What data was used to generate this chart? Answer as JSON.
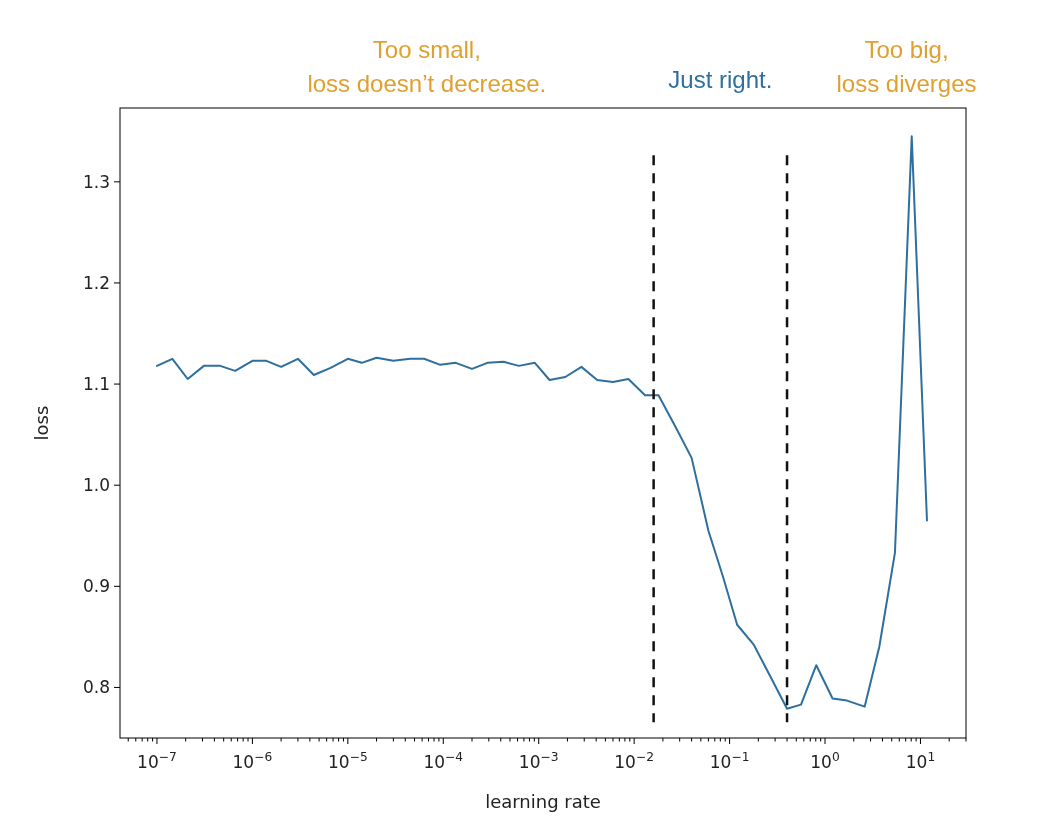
{
  "chart_data": {
    "type": "line",
    "xlabel": "learning rate",
    "ylabel": "loss",
    "log": "x",
    "grid": false,
    "marker": "none",
    "line_style": "solid",
    "annotations": [
      "Too small,\nloss doesn’t decrease.",
      "Just right.",
      "Too big,\nloss diverges"
    ],
    "xlim": [
      4.1e-08,
      30
    ],
    "ylim": [
      0.75,
      1.373
    ],
    "yticks": [
      {
        "value": 0.8,
        "label": "0.8"
      },
      {
        "value": 0.9,
        "label": "0.9"
      },
      {
        "value": 1.0,
        "label": "1.0"
      },
      {
        "value": 1.1,
        "label": "1.1"
      },
      {
        "value": 1.2,
        "label": "1.2"
      },
      {
        "value": 1.3,
        "label": "1.3"
      }
    ],
    "xticks": [
      {
        "value": 1e-07,
        "label": "10$^{−7}$"
      },
      {
        "value": 1e-06,
        "label": "10$^{−6}$"
      },
      {
        "value": 1e-05,
        "label": "10$^{−5}$"
      },
      {
        "value": 0.0001,
        "label": "10$^{−4}$"
      },
      {
        "value": 0.001,
        "label": "10$^{−3}$"
      },
      {
        "value": 0.01,
        "label": "10$^{−2}$"
      },
      {
        "value": 0.1,
        "label": "10$^{−1}$"
      },
      {
        "value": 1,
        "label": "10$^{0}$"
      },
      {
        "value": 10,
        "label": "10$^{1}$"
      },
      {
        "value": 5e-08,
        "label": null
      },
      {
        "value": 6e-08,
        "label": null
      },
      {
        "value": 7e-08,
        "label": null
      },
      {
        "value": 8e-08,
        "label": null
      },
      {
        "value": 9e-08,
        "label": null
      },
      {
        "value": 2e-07,
        "label": null
      },
      {
        "value": 3e-07,
        "label": null
      },
      {
        "value": 4e-07,
        "label": null
      },
      {
        "value": 5e-07,
        "label": null
      },
      {
        "value": 6e-07,
        "label": null
      },
      {
        "value": 7e-07,
        "label": null
      },
      {
        "value": 8e-07,
        "label": null
      },
      {
        "value": 9e-07,
        "label": null
      },
      {
        "value": 2e-06,
        "label": null
      },
      {
        "value": 3e-06,
        "label": null
      },
      {
        "value": 4e-06,
        "label": null
      },
      {
        "value": 5e-06,
        "label": null
      },
      {
        "value": 6e-06,
        "label": null
      },
      {
        "value": 7e-06,
        "label": null
      },
      {
        "value": 8e-06,
        "label": null
      },
      {
        "value": 9e-06,
        "label": null
      },
      {
        "value": 2e-05,
        "label": null
      },
      {
        "value": 3e-05,
        "label": null
      },
      {
        "value": 4e-05,
        "label": null
      },
      {
        "value": 5e-05,
        "label": null
      },
      {
        "value": 6e-05,
        "label": null
      },
      {
        "value": 7e-05,
        "label": null
      },
      {
        "value": 8e-05,
        "label": null
      },
      {
        "value": 9e-05,
        "label": null
      },
      {
        "value": 0.0002,
        "label": null
      },
      {
        "value": 0.0003,
        "label": null
      },
      {
        "value": 0.0004,
        "label": null
      },
      {
        "value": 0.0005,
        "label": null
      },
      {
        "value": 0.0006,
        "label": null
      },
      {
        "value": 0.0007,
        "label": null
      },
      {
        "value": 0.0008,
        "label": null
      },
      {
        "value": 0.0009,
        "label": null
      },
      {
        "value": 0.002,
        "label": null
      },
      {
        "value": 0.003,
        "label": null
      },
      {
        "value": 0.004,
        "label": null
      },
      {
        "value": 0.005,
        "label": null
      },
      {
        "value": 0.006,
        "label": null
      },
      {
        "value": 0.007,
        "label": null
      },
      {
        "value": 0.008,
        "label": null
      },
      {
        "value": 0.009,
        "label": null
      },
      {
        "value": 0.02,
        "label": null
      },
      {
        "value": 0.03,
        "label": null
      },
      {
        "value": 0.04,
        "label": null
      },
      {
        "value": 0.05,
        "label": null
      },
      {
        "value": 0.06,
        "label": null
      },
      {
        "value": 0.07,
        "label": null
      },
      {
        "value": 0.08,
        "label": null
      },
      {
        "value": 0.09,
        "label": null
      },
      {
        "value": 0.2,
        "label": null
      },
      {
        "value": 0.3,
        "label": null
      },
      {
        "value": 0.4,
        "label": null
      },
      {
        "value": 0.5,
        "label": null
      },
      {
        "value": 0.6,
        "label": null
      },
      {
        "value": 0.7,
        "label": null
      },
      {
        "value": 0.8,
        "label": null
      },
      {
        "value": 0.9,
        "label": null
      },
      {
        "value": 2,
        "label": null
      },
      {
        "value": 3,
        "label": null
      },
      {
        "value": 4,
        "label": null
      },
      {
        "value": 5,
        "label": null
      },
      {
        "value": 6,
        "label": null
      },
      {
        "value": 7,
        "label": null
      },
      {
        "value": 8,
        "label": null
      },
      {
        "value": 9,
        "label": null
      },
      {
        "value": 20,
        "label": null
      },
      {
        "value": 30,
        "label": null
      }
    ],
    "ref_lines": [
      {
        "axis": "x",
        "value": 0.016,
        "color": "#111111",
        "line_style": "dashed"
      },
      {
        "axis": "x",
        "value": 0.4,
        "color": "#111111",
        "line_style": "dashed"
      }
    ],
    "x": [
      1e-07,
      1.45e-07,
      2.1e-07,
      3.1e-07,
      4.6e-07,
      6.6e-07,
      1e-06,
      1.4e-06,
      2e-06,
      3e-06,
      4.4e-06,
      6.6e-06,
      1e-05,
      1.4e-05,
      2e-05,
      3e-05,
      4.5e-05,
      6.3e-05,
      9.3e-05,
      0.000135,
      0.0002,
      0.00029,
      0.00043,
      0.00062,
      0.00091,
      0.0013,
      0.0019,
      0.0028,
      0.0041,
      0.006,
      0.0087,
      0.013,
      0.018,
      0.027,
      0.04,
      0.06,
      0.085,
      0.12,
      0.18,
      0.27,
      0.4,
      0.56,
      0.81,
      1.2,
      1.7,
      2.6,
      3.7,
      5.4,
      8.1,
      11.7
    ],
    "series": [
      {
        "color": "#2e6f9e",
        "values": [
          1.118,
          1.125,
          1.105,
          1.118,
          1.118,
          1.113,
          1.123,
          1.123,
          1.117,
          1.125,
          1.109,
          1.116,
          1.125,
          1.121,
          1.126,
          1.123,
          1.125,
          1.125,
          1.119,
          1.121,
          1.115,
          1.121,
          1.122,
          1.118,
          1.121,
          1.104,
          1.107,
          1.117,
          1.104,
          1.102,
          1.105,
          1.089,
          1.089,
          1.058,
          1.027,
          0.955,
          0.91,
          0.862,
          0.842,
          0.81,
          0.779,
          0.783,
          0.822,
          0.789,
          0.787,
          0.781,
          0.84,
          0.933,
          1.345,
          0.965
        ]
      }
    ]
  }
}
